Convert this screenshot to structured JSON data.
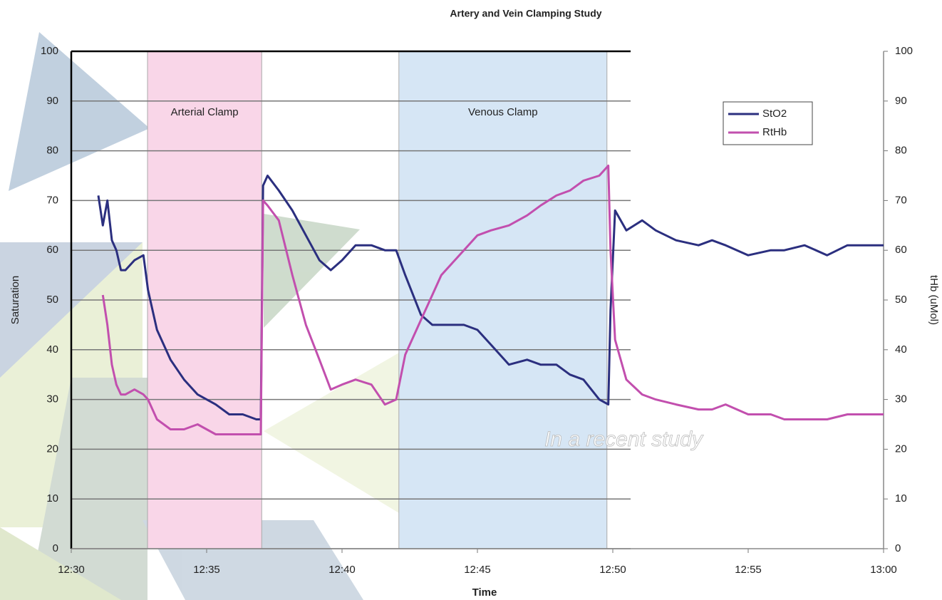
{
  "chart_data": {
    "type": "line",
    "title": "Artery and Vein Clamping Study",
    "x_label": "Time",
    "y_label": "Saturation",
    "y2_label": "tHb (uMol)",
    "watermark": "In a recent study",
    "xlim": [
      "12:30",
      "13:00"
    ],
    "xticks": [
      "12:30",
      "12:35",
      "12:40",
      "12:45",
      "12:50",
      "12:55",
      "13:00"
    ],
    "ylim": [
      0,
      100
    ],
    "yticks": [
      0,
      10,
      20,
      30,
      40,
      50,
      60,
      70,
      80,
      90,
      100
    ],
    "y2lim": [
      0,
      100
    ],
    "y2ticks": [
      0,
      10,
      20,
      30,
      40,
      50,
      60,
      70,
      80,
      90,
      100
    ],
    "grid": true,
    "legend": "upper right",
    "spans": [
      {
        "label": "Arterial Clamp",
        "x": [
          "12:32:49",
          "12:37:02"
        ],
        "color": "#f9d6e8"
      },
      {
        "label": "Venous Clamp",
        "x": [
          "12:42:06",
          "12:49:47"
        ],
        "color": "#d6e6f5"
      }
    ],
    "x": [
      "12:31:00",
      "12:31:10",
      "12:31:20",
      "12:31:30",
      "12:31:40",
      "12:31:50",
      "12:32:00",
      "12:32:20",
      "12:32:40",
      "12:32:50",
      "12:33:10",
      "12:33:40",
      "12:34:10",
      "12:34:40",
      "12:35:20",
      "12:35:50",
      "12:36:20",
      "12:36:50",
      "12:37:00",
      "12:37:05",
      "12:37:15",
      "12:37:40",
      "12:38:10",
      "12:38:40",
      "12:39:10",
      "12:39:35",
      "12:40:00",
      "12:40:30",
      "12:41:05",
      "12:41:35",
      "12:42:00",
      "12:42:20",
      "12:42:55",
      "12:43:20",
      "12:43:40",
      "12:44:30",
      "12:45:00",
      "12:45:30",
      "12:46:10",
      "12:46:50",
      "12:47:20",
      "12:47:55",
      "12:48:25",
      "12:48:55",
      "12:49:30",
      "12:49:50",
      "12:49:55",
      "12:50:05",
      "12:50:30",
      "12:51:05",
      "12:51:35",
      "12:52:20",
      "12:53:10",
      "12:53:40",
      "12:54:10",
      "12:55:00",
      "12:55:50",
      "12:56:20",
      "12:57:05",
      "12:57:55",
      "12:58:40",
      "13:00:00"
    ],
    "series": [
      {
        "name": "StO2",
        "color": "#2b2f7f",
        "axis": "y",
        "values": [
          71,
          65,
          70,
          62,
          60,
          56,
          56,
          58,
          59,
          52,
          44,
          38,
          34,
          31,
          29,
          27,
          27,
          26,
          26,
          73,
          75,
          72,
          68,
          63,
          58,
          56,
          58,
          61,
          61,
          60,
          60,
          55,
          47,
          45,
          45,
          45,
          44,
          41,
          37,
          38,
          37,
          37,
          35,
          34,
          30,
          29,
          48,
          68,
          64,
          66,
          64,
          62,
          61,
          62,
          61,
          59,
          60,
          60,
          61,
          59,
          61,
          61
        ]
      },
      {
        "name": "RtHb",
        "color": "#c24fae",
        "axis": "y2",
        "values": [
          null,
          51,
          45,
          37,
          33,
          31,
          31,
          32,
          31,
          30,
          26,
          24,
          24,
          25,
          23,
          23,
          23,
          23,
          23,
          70,
          69,
          66,
          55,
          45,
          38,
          32,
          33,
          34,
          33,
          29,
          30,
          39,
          46,
          51,
          55,
          60,
          63,
          64,
          65,
          67,
          69,
          71,
          72,
          74,
          75,
          77,
          60,
          42,
          34,
          31,
          30,
          29,
          28,
          28,
          29,
          27,
          27,
          26,
          26,
          26,
          27,
          27
        ]
      }
    ]
  }
}
